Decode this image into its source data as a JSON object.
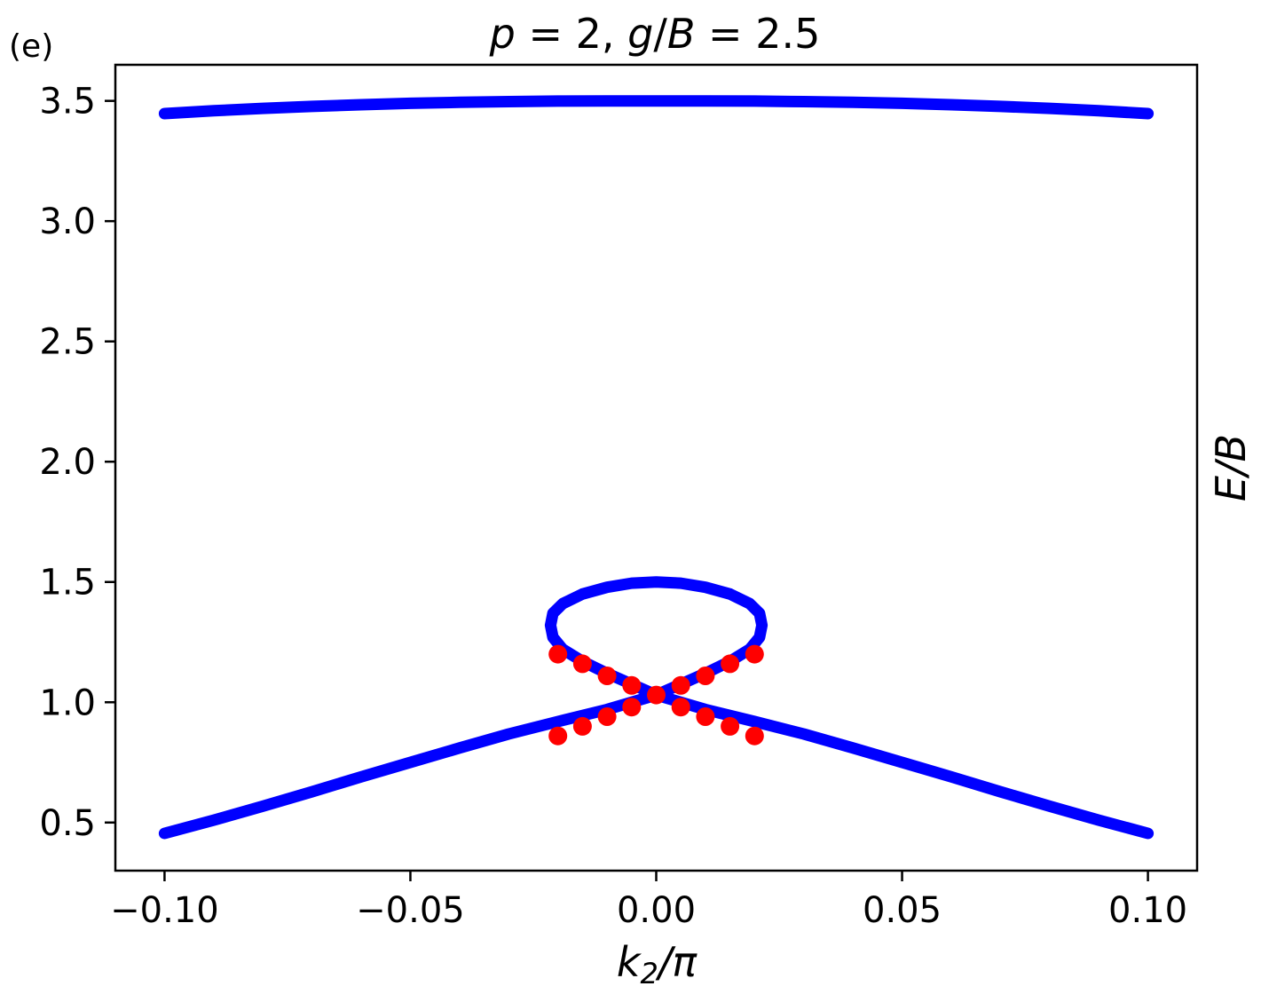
{
  "panel_label": "(e)",
  "chart_data": {
    "type": "scatter",
    "title": "p = 2, g/B = 2.5",
    "title_parts": {
      "p": "p",
      "eq1": " = 2, ",
      "g": "g",
      "slash": "/",
      "B": "B",
      "eq2": " = 2.5"
    },
    "xlabel": "k₂/π",
    "xlabel_parts": {
      "k": "k",
      "sub": "2",
      "rest": "/π"
    },
    "ylabel": "E/B",
    "xlim": [
      -0.11,
      0.11
    ],
    "ylim": [
      0.3,
      3.65
    ],
    "xticks": [
      -0.1,
      -0.05,
      0.0,
      0.05,
      0.1
    ],
    "xtick_labels": [
      "−0.10",
      "−0.05",
      "0.00",
      "0.05",
      "0.10"
    ],
    "yticks": [
      0.5,
      1.0,
      1.5,
      2.0,
      2.5,
      3.0,
      3.5
    ],
    "ytick_labels": [
      "0.5",
      "1.0",
      "1.5",
      "2.0",
      "2.5",
      "3.0",
      "3.5"
    ],
    "grid": false,
    "colors": {
      "band": "#0000ff",
      "marker": "#ff0000"
    },
    "bands": [
      {
        "x": [
          -0.1,
          -0.09,
          -0.08,
          -0.07,
          -0.06,
          -0.05,
          -0.04,
          -0.03,
          -0.02,
          -0.01,
          0.0,
          0.01,
          0.02,
          0.03,
          0.04,
          0.05,
          0.06,
          0.07,
          0.08,
          0.09,
          0.1
        ],
        "y": [
          3.447,
          3.459,
          3.469,
          3.477,
          3.484,
          3.49,
          3.494,
          3.497,
          3.499,
          3.5,
          3.5,
          3.5,
          3.499,
          3.497,
          3.494,
          3.49,
          3.484,
          3.477,
          3.469,
          3.459,
          3.447
        ]
      },
      {
        "x": [
          -0.1,
          -0.09,
          -0.08,
          -0.07,
          -0.06,
          -0.05,
          -0.04,
          -0.03,
          -0.02,
          -0.01,
          0.0
        ],
        "y": [
          0.455,
          0.51,
          0.568,
          0.628,
          0.69,
          0.75,
          0.81,
          0.868,
          0.92,
          0.97,
          1.03
        ]
      },
      {
        "x": [
          0.0,
          0.01,
          0.02,
          0.03,
          0.04,
          0.05,
          0.06,
          0.07,
          0.08,
          0.09,
          0.1
        ],
        "y": [
          1.03,
          0.97,
          0.92,
          0.868,
          0.81,
          0.75,
          0.69,
          0.628,
          0.568,
          0.51,
          0.455
        ]
      },
      {
        "x": [
          0.0,
          -0.005,
          -0.01,
          -0.015,
          -0.019,
          -0.021,
          -0.0215,
          -0.021,
          -0.019,
          -0.015,
          -0.01,
          -0.005,
          0.0,
          0.005,
          0.01,
          0.015,
          0.019,
          0.021,
          0.0215,
          0.021,
          0.019,
          0.015,
          0.01,
          0.005,
          0.0
        ],
        "y": [
          1.03,
          1.075,
          1.12,
          1.17,
          1.22,
          1.27,
          1.32,
          1.37,
          1.41,
          1.45,
          1.478,
          1.495,
          1.5,
          1.495,
          1.478,
          1.45,
          1.41,
          1.37,
          1.32,
          1.27,
          1.22,
          1.17,
          1.12,
          1.075,
          1.03
        ]
      }
    ],
    "markers": {
      "x": [
        -0.02,
        -0.015,
        -0.01,
        -0.005,
        0.0,
        0.005,
        0.01,
        0.015,
        0.02,
        -0.02,
        -0.015,
        -0.01,
        -0.005,
        0.005,
        0.01,
        0.015,
        0.02
      ],
      "y": [
        1.2,
        1.16,
        1.11,
        1.07,
        1.03,
        1.07,
        1.11,
        1.16,
        1.2,
        0.86,
        0.9,
        0.94,
        0.98,
        0.98,
        0.94,
        0.9,
        0.86
      ]
    }
  }
}
